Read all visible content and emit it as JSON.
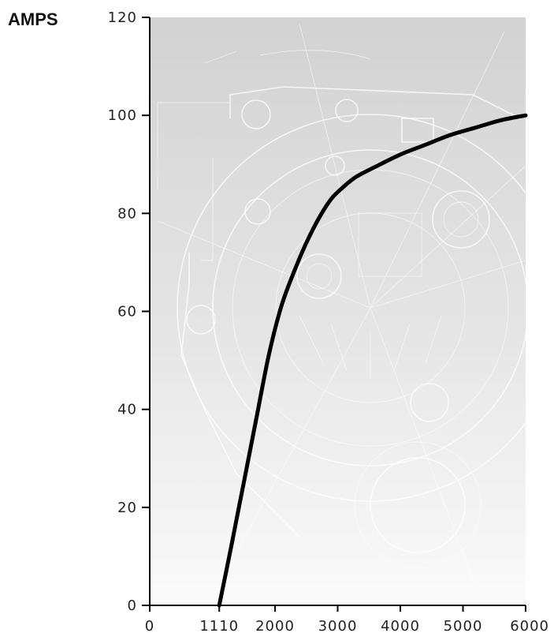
{
  "chart_data": {
    "type": "line",
    "title": "",
    "ylabel": "AMPS",
    "xlabel": "",
    "xlim": [
      0,
      6000
    ],
    "ylim": [
      0,
      120
    ],
    "x_ticks": [
      0,
      1110,
      2000,
      3000,
      4000,
      5000,
      6000
    ],
    "y_ticks": [
      0,
      20,
      40,
      60,
      80,
      100,
      120
    ],
    "grid": false,
    "series": [
      {
        "color": "#000000",
        "x": [
          1110,
          1300,
          1500,
          1700,
          1900,
          2100,
          2300,
          2500,
          2700,
          2900,
          3100,
          3300,
          3600,
          4000,
          4400,
          4800,
          5200,
          5600,
          6000
        ],
        "y": [
          0,
          12,
          25,
          38,
          51,
          61,
          68,
          74,
          79,
          83,
          85.5,
          87.5,
          89.5,
          92,
          94,
          96,
          97.5,
          99,
          100
        ]
      }
    ],
    "background": "alternator-blueprint-drawing"
  }
}
